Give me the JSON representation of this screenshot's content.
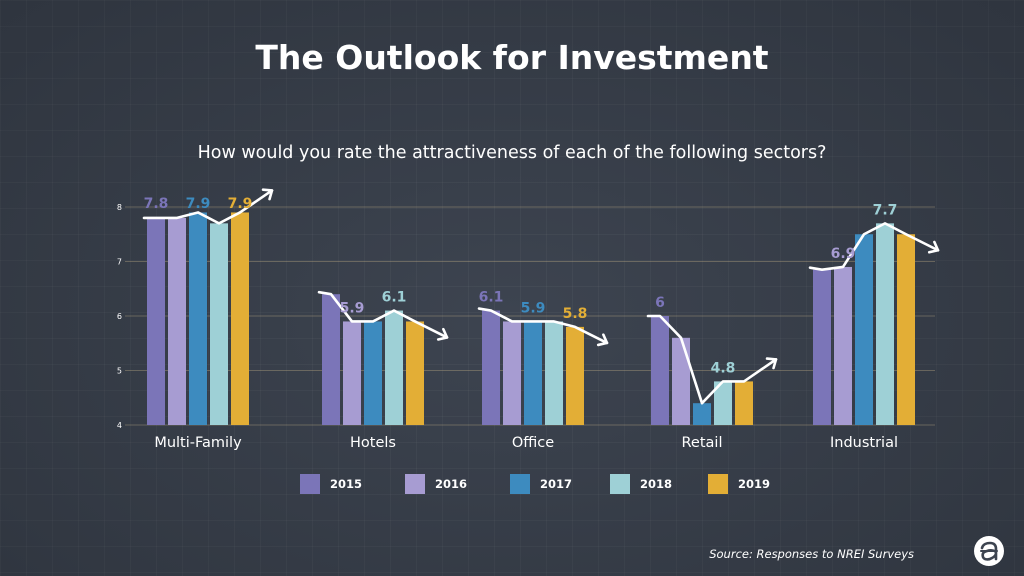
{
  "title": "The Outlook for Investment",
  "subtitle": "How would you rate the attractiveness of each of the following sectors?",
  "source": "Source: Responses to NREI Surveys",
  "colors": {
    "2015": "#7b75b8",
    "2016": "#a79cd2",
    "2017": "#3d8bbf",
    "2018": "#9ed0d6",
    "2019": "#e3ae36",
    "background": "#3d4450",
    "trend_line": "#ffffff"
  },
  "chart_data": {
    "type": "bar",
    "title": "The Outlook for Investment",
    "subtitle": "How would you rate the attractiveness of each of the following sectors?",
    "xlabel": "",
    "ylabel": "",
    "ylim": [
      4,
      8
    ],
    "yticks": [
      4,
      5,
      6,
      7,
      8
    ],
    "grid": true,
    "legend_position": "bottom",
    "categories": [
      "Multi-Family",
      "Hotels",
      "Office",
      "Retail",
      "Industrial"
    ],
    "series": [
      {
        "name": "2015",
        "values": [
          7.8,
          6.4,
          6.1,
          6.0,
          6.85
        ]
      },
      {
        "name": "2016",
        "values": [
          7.8,
          5.9,
          5.9,
          5.6,
          6.9
        ]
      },
      {
        "name": "2017",
        "values": [
          7.9,
          5.9,
          5.9,
          4.4,
          7.5
        ]
      },
      {
        "name": "2018",
        "values": [
          7.7,
          6.1,
          5.9,
          4.8,
          7.7
        ]
      },
      {
        "name": "2019",
        "values": [
          7.9,
          5.9,
          5.8,
          4.8,
          7.5
        ]
      }
    ],
    "data_labels": [
      {
        "category": "Multi-Family",
        "series": "2015",
        "text": "7.8"
      },
      {
        "category": "Multi-Family",
        "series": "2017",
        "text": "7.9"
      },
      {
        "category": "Multi-Family",
        "series": "2019",
        "text": "7.9"
      },
      {
        "category": "Hotels",
        "series": "2016",
        "text": "5.9"
      },
      {
        "category": "Hotels",
        "series": "2018",
        "text": "6.1"
      },
      {
        "category": "Office",
        "series": "2015",
        "text": "6.1"
      },
      {
        "category": "Office",
        "series": "2017",
        "text": "5.9"
      },
      {
        "category": "Office",
        "series": "2019",
        "text": "5.8"
      },
      {
        "category": "Retail",
        "series": "2015",
        "text": "6"
      },
      {
        "category": "Retail",
        "series": "2018",
        "text": "4.8"
      },
      {
        "category": "Industrial",
        "series": "2016",
        "text": "6.9"
      },
      {
        "category": "Industrial",
        "series": "2018",
        "text": "7.7"
      }
    ],
    "trend_arrows": "up,down,down,up,down"
  }
}
